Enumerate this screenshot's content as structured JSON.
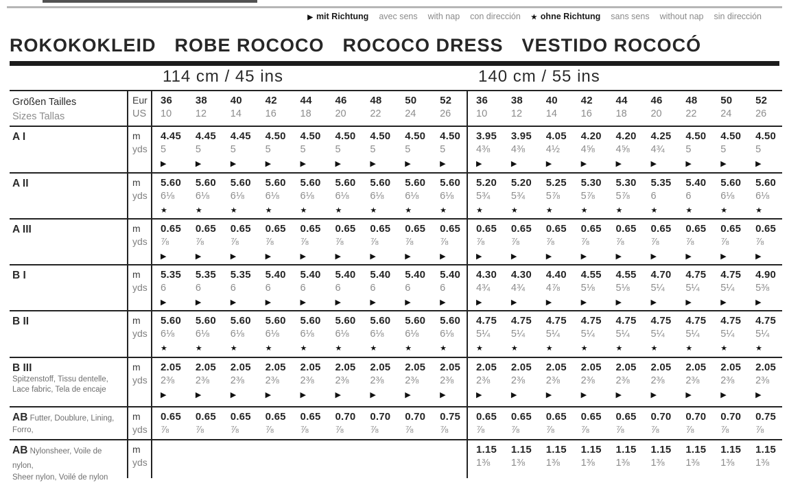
{
  "legend": {
    "items": [
      {
        "icon": "with-nap-icon",
        "symbol": "▶",
        "label": "mit Richtung",
        "emphasis": true
      },
      {
        "label": "avec sens"
      },
      {
        "label": "with nap"
      },
      {
        "label": "con dirección"
      },
      {
        "icon": "without-nap-icon",
        "symbol": "★",
        "label": "ohne Richtung",
        "emphasis": true
      },
      {
        "label": "sans sens"
      },
      {
        "label": "without nap"
      },
      {
        "label": "sin dirección"
      }
    ]
  },
  "title": {
    "words": [
      "ROKOKOKLEID",
      "ROBE ROCOCO",
      "ROCOCO DRESS",
      "VESTIDO ROCOCÓ"
    ]
  },
  "table": {
    "groups": [
      {
        "header": "114 cm / 45 ins"
      },
      {
        "header": "140 cm / 55 ins"
      }
    ],
    "size_header": {
      "label_line1": "Größen  Tailles",
      "label_line2": "Sizes  Tallas",
      "unit_line1": "Eur",
      "unit_line2": "US",
      "eur": [
        "36",
        "38",
        "40",
        "42",
        "44",
        "46",
        "48",
        "50",
        "52"
      ],
      "us": [
        "10",
        "12",
        "14",
        "16",
        "18",
        "20",
        "22",
        "24",
        "26"
      ]
    },
    "rows": [
      {
        "label": "A I",
        "unit_top": "m",
        "unit_bottom": "yds",
        "groups": [
          {
            "m": [
              "4.45",
              "4.45",
              "4.45",
              "4.50",
              "4.50",
              "4.50",
              "4.50",
              "4.50",
              "4.50"
            ],
            "yds": [
              "5",
              "5",
              "5",
              "5",
              "5",
              "5",
              "5",
              "5",
              "5"
            ],
            "symbol": "▶"
          },
          {
            "m": [
              "3.95",
              "3.95",
              "4.05",
              "4.20",
              "4.20",
              "4.25",
              "4.50",
              "4.50",
              "4.50"
            ],
            "yds": [
              "4⅜",
              "4⅜",
              "4½",
              "4⅝",
              "4⅝",
              "4¾",
              "5",
              "5",
              "5"
            ],
            "symbol": "▶"
          }
        ]
      },
      {
        "label": "A II",
        "unit_top": "m",
        "unit_bottom": "yds",
        "groups": [
          {
            "m": [
              "5.60",
              "5.60",
              "5.60",
              "5.60",
              "5.60",
              "5.60",
              "5.60",
              "5.60",
              "5.60"
            ],
            "yds": [
              "6⅛",
              "6⅛",
              "6⅛",
              "6⅛",
              "6⅛",
              "6⅛",
              "6⅛",
              "6⅛",
              "6⅛"
            ],
            "symbol": "★"
          },
          {
            "m": [
              "5.20",
              "5.20",
              "5.25",
              "5.30",
              "5.30",
              "5.35",
              "5.40",
              "5.60",
              "5.60"
            ],
            "yds": [
              "5¾",
              "5¾",
              "5⅞",
              "5⅞",
              "5⅞",
              "6",
              "6",
              "6⅛",
              "6⅛"
            ],
            "symbol": "★"
          }
        ]
      },
      {
        "label": "A III",
        "unit_top": "m",
        "unit_bottom": "yds",
        "groups": [
          {
            "m": [
              "0.65",
              "0.65",
              "0.65",
              "0.65",
              "0.65",
              "0.65",
              "0.65",
              "0.65",
              "0.65"
            ],
            "yds": [
              "⅞",
              "⅞",
              "⅞",
              "⅞",
              "⅞",
              "⅞",
              "⅞",
              "⅞",
              "⅞"
            ],
            "symbol": "▶"
          },
          {
            "m": [
              "0.65",
              "0.65",
              "0.65",
              "0.65",
              "0.65",
              "0.65",
              "0.65",
              "0.65",
              "0.65"
            ],
            "yds": [
              "⅞",
              "⅞",
              "⅞",
              "⅞",
              "⅞",
              "⅞",
              "⅞",
              "⅞",
              "⅞"
            ],
            "symbol": "▶"
          }
        ]
      },
      {
        "label": "B I",
        "unit_top": "m",
        "unit_bottom": "yds",
        "groups": [
          {
            "m": [
              "5.35",
              "5.35",
              "5.35",
              "5.40",
              "5.40",
              "5.40",
              "5.40",
              "5.40",
              "5.40"
            ],
            "yds": [
              "6",
              "6",
              "6",
              "6",
              "6",
              "6",
              "6",
              "6",
              "6"
            ],
            "symbol": "▶"
          },
          {
            "m": [
              "4.30",
              "4.30",
              "4.40",
              "4.55",
              "4.55",
              "4.70",
              "4.75",
              "4.75",
              "4.90"
            ],
            "yds": [
              "4¾",
              "4¾",
              "4⅞",
              "5⅛",
              "5⅛",
              "5¼",
              "5¼",
              "5¼",
              "5⅜"
            ],
            "symbol": "▶"
          }
        ]
      },
      {
        "label": "B II",
        "unit_top": "m",
        "unit_bottom": "yds",
        "groups": [
          {
            "m": [
              "5.60",
              "5.60",
              "5.60",
              "5.60",
              "5.60",
              "5.60",
              "5.60",
              "5.60",
              "5.60"
            ],
            "yds": [
              "6⅛",
              "6⅛",
              "6⅛",
              "6⅛",
              "6⅛",
              "6⅛",
              "6⅛",
              "6⅛",
              "6⅛"
            ],
            "symbol": "★"
          },
          {
            "m": [
              "4.75",
              "4.75",
              "4.75",
              "4.75",
              "4.75",
              "4.75",
              "4.75",
              "4.75",
              "4.75"
            ],
            "yds": [
              "5¼",
              "5¼",
              "5¼",
              "5¼",
              "5¼",
              "5¼",
              "5¼",
              "5¼",
              "5¼"
            ],
            "symbol": "★"
          }
        ]
      },
      {
        "label": "B III",
        "sublines": [
          "Spitzenstoff, Tissu dentelle,",
          "Lace fabric, Tela de encaje"
        ],
        "unit_top": "m",
        "unit_bottom": "yds",
        "groups": [
          {
            "m": [
              "2.05",
              "2.05",
              "2.05",
              "2.05",
              "2.05",
              "2.05",
              "2.05",
              "2.05",
              "2.05"
            ],
            "yds": [
              "2⅜",
              "2⅜",
              "2⅜",
              "2⅜",
              "2⅜",
              "2⅜",
              "2⅜",
              "2⅜",
              "2⅜"
            ],
            "symbol": "▶"
          },
          {
            "m": [
              "2.05",
              "2.05",
              "2.05",
              "2.05",
              "2.05",
              "2.05",
              "2.05",
              "2.05",
              "2.05"
            ],
            "yds": [
              "2⅜",
              "2⅜",
              "2⅜",
              "2⅜",
              "2⅜",
              "2⅜",
              "2⅜",
              "2⅜",
              "2⅜"
            ],
            "symbol": "▶"
          }
        ]
      },
      {
        "label": "AB",
        "label_inline": "Futter, Doublure, Lining,",
        "sublines": [
          "Forro,"
        ],
        "unit_top": "m",
        "unit_bottom": "yds",
        "groups": [
          {
            "m": [
              "0.65",
              "0.65",
              "0.65",
              "0.65",
              "0.65",
              "0.70",
              "0.70",
              "0.70",
              "0.75"
            ],
            "yds": [
              "⅞",
              "⅞",
              "⅞",
              "⅞",
              "⅞",
              "⅞",
              "⅞",
              "⅞",
              "⅞"
            ],
            "symbol": null
          },
          {
            "m": [
              "0.65",
              "0.65",
              "0.65",
              "0.65",
              "0.65",
              "0.70",
              "0.70",
              "0.70",
              "0.75"
            ],
            "yds": [
              "⅞",
              "⅞",
              "⅞",
              "⅞",
              "⅞",
              "⅞",
              "⅞",
              "⅞",
              "⅞"
            ],
            "symbol": null
          }
        ]
      },
      {
        "label": "AB",
        "label_inline": "Nylonsheer, Voile de nylon,",
        "sublines": [
          "Sheer nylon, Voilé de nylon"
        ],
        "unit_top": "m",
        "unit_bottom": "yds",
        "groups": [
          {
            "m": [],
            "yds": [],
            "symbol": null
          },
          {
            "m": [
              "1.15",
              "1.15",
              "1.15",
              "1.15",
              "1.15",
              "1.15",
              "1.15",
              "1.15",
              "1.15"
            ],
            "yds": [
              "1⅜",
              "1⅜",
              "1⅜",
              "1⅜",
              "1⅜",
              "1⅜",
              "1⅜",
              "1⅜",
              "1⅜"
            ],
            "symbol": null
          }
        ]
      }
    ]
  }
}
